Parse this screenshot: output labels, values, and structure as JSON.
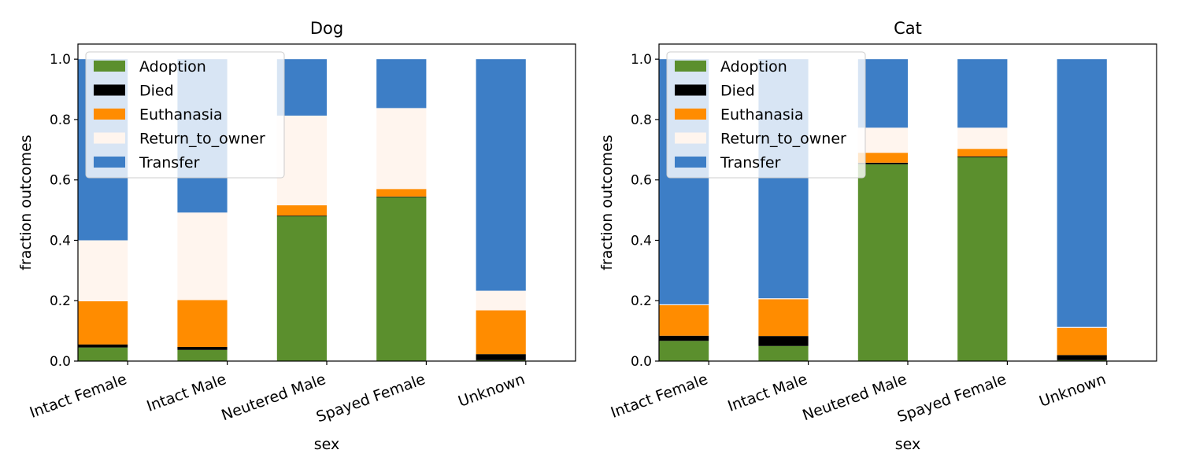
{
  "chart_data": [
    {
      "type": "bar",
      "stacked": true,
      "title": "Dog",
      "xlabel": "sex",
      "ylabel": "fraction outcomes",
      "ylim": [
        0,
        1.05
      ],
      "yticks": [
        "0.0",
        "0.2",
        "0.4",
        "0.6",
        "0.8",
        "1.0"
      ],
      "categories": [
        "Intact Female",
        "Intact Male",
        "Neutered Male",
        "Spayed Female",
        "Unknown"
      ],
      "legend_placement": "top-left",
      "series": [
        {
          "name": "Adoption",
          "color": "#5b8f2d",
          "values": [
            0.045,
            0.037,
            0.48,
            0.543,
            0.003
          ]
        },
        {
          "name": "Died",
          "color": "#000000",
          "values": [
            0.01,
            0.01,
            0.002,
            0.002,
            0.02
          ]
        },
        {
          "name": "Euthanasia",
          "color": "#ff8c00",
          "values": [
            0.143,
            0.155,
            0.034,
            0.025,
            0.145
          ]
        },
        {
          "name": "Return_to_owner",
          "color": "#fff5ee",
          "values": [
            0.202,
            0.29,
            0.297,
            0.268,
            0.065
          ]
        },
        {
          "name": "Transfer",
          "color": "#3d7ec6",
          "values": [
            0.6,
            0.508,
            0.187,
            0.162,
            0.767
          ]
        }
      ]
    },
    {
      "type": "bar",
      "stacked": true,
      "title": "Cat",
      "xlabel": "sex",
      "ylabel": "fraction outcomes",
      "ylim": [
        0,
        1.05
      ],
      "yticks": [
        "0.0",
        "0.2",
        "0.4",
        "0.6",
        "0.8",
        "1.0"
      ],
      "categories": [
        "Intact Female",
        "Intact Male",
        "Neutered Male",
        "Spayed Female",
        "Unknown"
      ],
      "legend_placement": "top-left",
      "series": [
        {
          "name": "Adoption",
          "color": "#5b8f2d",
          "values": [
            0.067,
            0.05,
            0.652,
            0.675,
            0.003
          ]
        },
        {
          "name": "Died",
          "color": "#000000",
          "values": [
            0.017,
            0.033,
            0.005,
            0.003,
            0.017
          ]
        },
        {
          "name": "Euthanasia",
          "color": "#ff8c00",
          "values": [
            0.101,
            0.122,
            0.033,
            0.025,
            0.09
          ]
        },
        {
          "name": "Return_to_owner",
          "color": "#fff5ee",
          "values": [
            0.003,
            0.003,
            0.083,
            0.07,
            0.003
          ]
        },
        {
          "name": "Transfer",
          "color": "#3d7ec6",
          "values": [
            0.812,
            0.792,
            0.227,
            0.227,
            0.887
          ]
        }
      ]
    }
  ]
}
